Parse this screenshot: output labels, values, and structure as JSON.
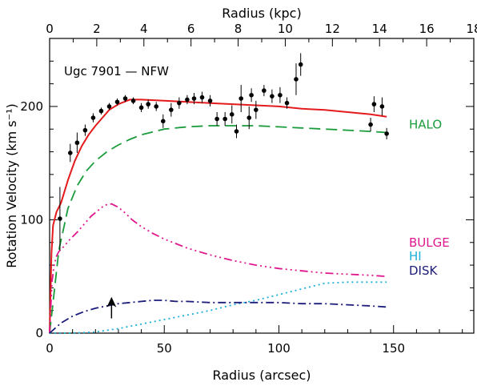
{
  "chart_data": {
    "type": "line",
    "title": "Ugc 7901 — NFW",
    "xlabel": "Radius (arcsec)",
    "ylabel": "Rotation Velocity (km s⁻¹)",
    "x2label": "Radius (kpc)",
    "xlim": [
      0,
      185
    ],
    "ylim": [
      0,
      260
    ],
    "x2lim": [
      0,
      18
    ],
    "xticks": [
      0,
      50,
      100,
      150
    ],
    "yticks": [
      0,
      100,
      200
    ],
    "x2ticks": [
      0,
      2,
      4,
      6,
      8,
      10,
      12,
      14,
      16,
      18
    ],
    "observed": {
      "name": "observed",
      "color": "#000000",
      "points": [
        [
          4.5,
          101,
          28
        ],
        [
          9,
          159,
          8
        ],
        [
          12,
          168,
          9
        ],
        [
          15.5,
          179,
          5
        ],
        [
          19,
          190,
          4
        ],
        [
          22.5,
          196,
          3
        ],
        [
          26,
          200,
          3
        ],
        [
          29.5,
          204,
          3
        ],
        [
          33,
          207,
          3
        ],
        [
          36.5,
          205,
          3
        ],
        [
          40,
          199,
          4
        ],
        [
          43,
          202,
          4
        ],
        [
          46.5,
          200,
          4
        ],
        [
          49.5,
          187,
          6
        ],
        [
          53,
          197,
          6
        ],
        [
          56.5,
          203,
          5
        ],
        [
          60,
          206,
          4
        ],
        [
          63,
          207,
          5
        ],
        [
          66.5,
          208,
          5
        ],
        [
          70,
          205,
          5
        ],
        [
          73,
          189,
          6
        ],
        [
          76.5,
          189,
          6
        ],
        [
          79.5,
          193,
          8
        ],
        [
          81.5,
          178,
          6
        ],
        [
          83.5,
          207,
          12
        ],
        [
          87,
          190,
          10
        ],
        [
          88,
          210,
          6
        ],
        [
          90,
          197,
          8
        ],
        [
          93.5,
          214,
          5
        ],
        [
          97,
          209,
          6
        ],
        [
          100.5,
          210,
          7
        ],
        [
          103.5,
          203,
          5
        ],
        [
          107.5,
          224,
          14
        ],
        [
          109.5,
          237,
          10
        ],
        [
          140,
          184,
          6
        ],
        [
          141.5,
          202,
          7
        ],
        [
          145,
          200,
          8
        ],
        [
          147,
          176,
          5
        ]
      ]
    },
    "series": [
      {
        "name": "",
        "color": "#e41a1c",
        "dash": "",
        "x": [
          0,
          0.8,
          1.5,
          3,
          5,
          8,
          11,
          14,
          17,
          20,
          23,
          26,
          30,
          35,
          40,
          50,
          60,
          70,
          80,
          90,
          100,
          110,
          120,
          130,
          140,
          147
        ],
        "y": [
          0,
          70,
          95,
          107,
          115,
          135,
          152,
          165,
          175,
          183,
          190,
          197,
          202,
          206,
          206,
          205,
          204,
          203,
          202,
          201,
          200,
          198,
          197,
          195,
          193,
          191
        ]
      },
      {
        "name": "HALO",
        "color": "#1a9b3c",
        "dash": "14,7",
        "label_value": 184,
        "x": [
          0,
          4,
          8,
          12,
          16,
          20,
          25,
          30,
          35,
          40,
          50,
          60,
          70,
          80,
          90,
          100,
          110,
          120,
          130,
          140,
          147
        ],
        "y": [
          0,
          73,
          110,
          130,
          143,
          152,
          160,
          166,
          171,
          175,
          180,
          182,
          183,
          183,
          183,
          182,
          181,
          180,
          179,
          178,
          177
        ]
      },
      {
        "name": "BULGE",
        "color": "#e0168c",
        "dash": "10,4,2,4,2,4,2,4",
        "label_value": 80,
        "x": [
          0,
          1,
          2,
          3,
          4,
          6,
          9,
          12,
          15,
          18,
          21,
          24,
          27,
          30,
          33,
          36,
          40,
          45,
          50,
          60,
          70,
          80,
          90,
          100,
          110,
          120,
          130,
          140,
          147
        ],
        "y": [
          0,
          45,
          60,
          68,
          72,
          76,
          83,
          89,
          96,
          103,
          108,
          113,
          114,
          111,
          106,
          100,
          94,
          88,
          83,
          75,
          69,
          64,
          60,
          57,
          55,
          53,
          52,
          51,
          50
        ]
      },
      {
        "name": "HI",
        "color": "#1ab0d8",
        "dash": "2,4",
        "label_value": 68,
        "x": [
          0,
          10,
          20,
          30,
          40,
          50,
          60,
          70,
          80,
          90,
          100,
          110,
          120,
          130,
          140,
          147
        ],
        "y": [
          0,
          0,
          1,
          4,
          8,
          12,
          16,
          20,
          25,
          29,
          34,
          39,
          44,
          45,
          45,
          45
        ]
      },
      {
        "name": "DISK",
        "color": "#1c1c7a",
        "dash": "10,4,2,4",
        "label_value": 55,
        "x": [
          0,
          5,
          10,
          15,
          20,
          25,
          30,
          35,
          40,
          45,
          50,
          55,
          60,
          70,
          80,
          90,
          100,
          110,
          120,
          130,
          140,
          147
        ],
        "y": [
          0,
          9,
          15,
          19,
          22,
          24,
          26,
          27,
          28,
          29,
          29,
          28,
          28,
          27,
          27,
          27,
          27,
          26,
          26,
          25,
          24,
          23
        ]
      }
    ],
    "arrow": {
      "x": 27,
      "y_tip": 32,
      "y_tail": 13
    },
    "grid": false,
    "legend": "right, inline labels"
  }
}
